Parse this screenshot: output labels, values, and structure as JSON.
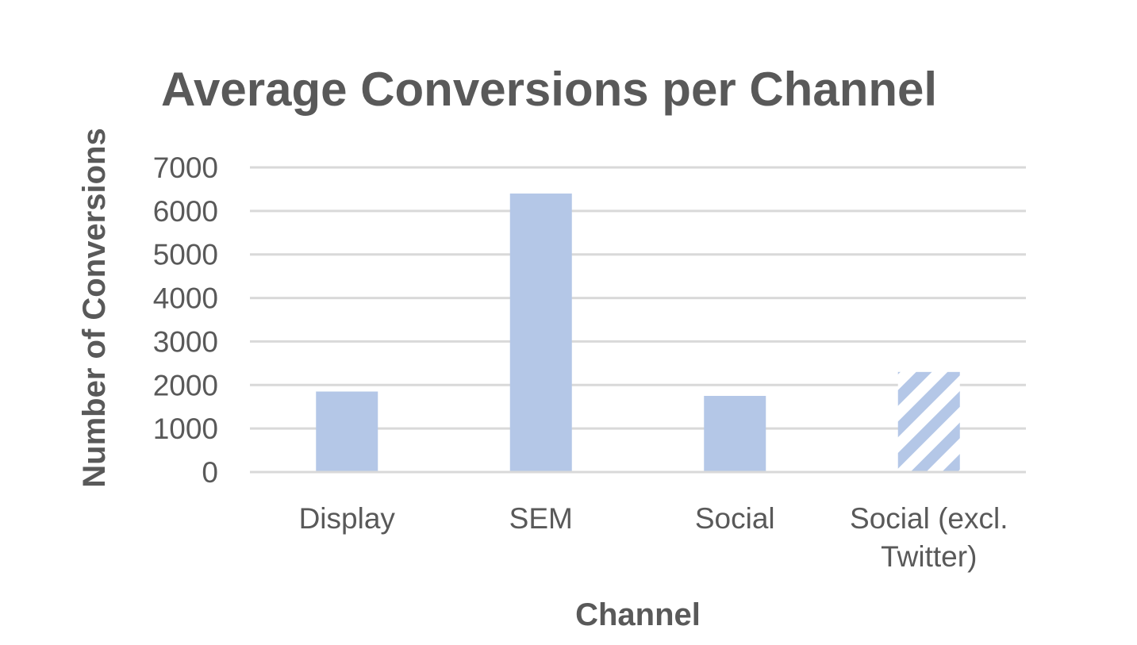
{
  "chart_data": {
    "type": "bar",
    "title": "Average Conversions per Channel",
    "xlabel": "Channel",
    "ylabel": "Number of Conversions",
    "categories": [
      "Display",
      "SEM",
      "Social",
      "Social (excl. Twitter)"
    ],
    "category_lines": [
      [
        "Display"
      ],
      [
        "SEM"
      ],
      [
        "Social"
      ],
      [
        "Social (excl.",
        "Twitter)"
      ]
    ],
    "values": [
      1850,
      6400,
      1750,
      2300
    ],
    "patterns": [
      "solid",
      "solid",
      "solid",
      "diagonal-stripes"
    ],
    "yticks": [
      "7000",
      "6000",
      "5000",
      "4000",
      "3000",
      "2000",
      "1000",
      "0"
    ],
    "ytick_values": [
      7000,
      6000,
      5000,
      4000,
      3000,
      2000,
      1000,
      0
    ],
    "ylim": [
      0,
      7000
    ],
    "grid": true,
    "legend": "none",
    "colors": {
      "bar": "#b4c7e7",
      "grid": "#d9d9d9",
      "text": "#595959",
      "stripe_gap": "#ffffff"
    }
  }
}
